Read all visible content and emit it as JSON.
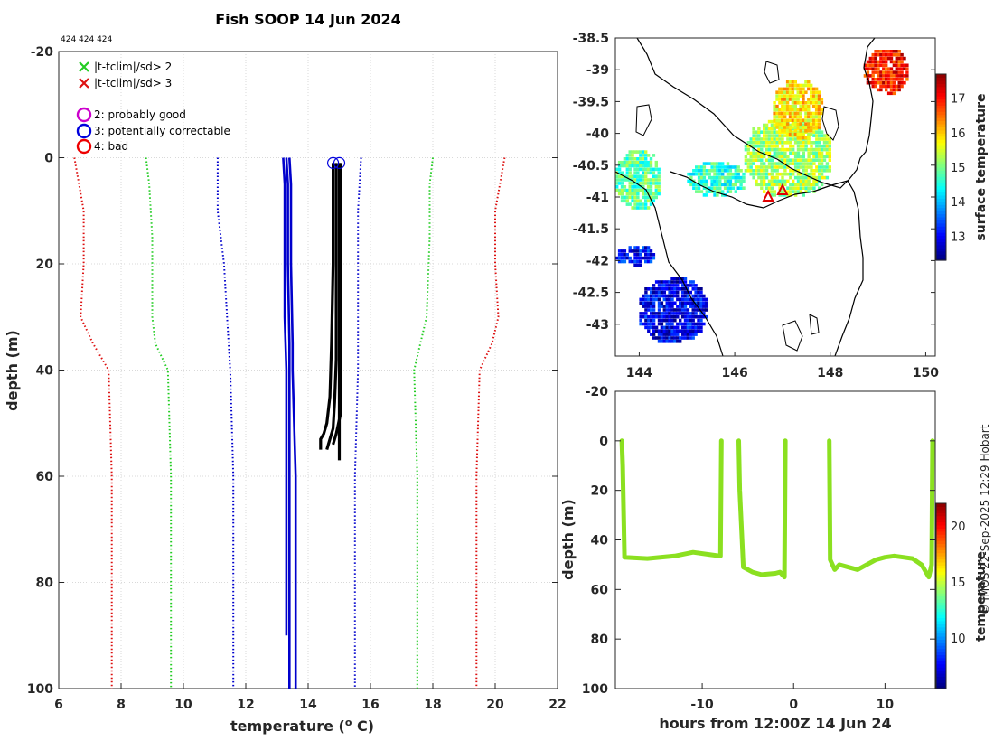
{
  "page": {
    "copyright": "© IMOS 22-Sep-2025 12:29 Hobart"
  },
  "colors": {
    "threshold_sd2": "#22cc22",
    "threshold_sd3": "#dd1111",
    "climatology": "#0000cc",
    "profile": "#000000",
    "qc_good": "#cc00cc",
    "qc_correctable": "#0000dd",
    "qc_bad": "#ee0000",
    "trace": "#8be020",
    "grid": "#d9d9d9"
  },
  "chart_data": [
    {
      "id": "profile",
      "type": "line",
      "title": "Fish SOOP 14 Jun 2024",
      "annotation": "424 424 424",
      "xlabel": "temperature (° C)",
      "xlabel_main": "temperature (",
      "xlabel_sup": "o",
      "xlabel_tail": " C)",
      "ylabel": "depth (m)",
      "xlim": [
        6,
        22
      ],
      "ylim": [
        -20,
        100
      ],
      "y_reversed": true,
      "xticks": [
        6,
        8,
        10,
        12,
        14,
        16,
        18,
        20,
        22
      ],
      "yticks": [
        -20,
        0,
        20,
        40,
        60,
        80,
        100
      ],
      "grid": true,
      "legend": [
        {
          "marker": "x",
          "color_key": "threshold_sd2",
          "label": "|t-tclim|/sd> 2"
        },
        {
          "marker": "x",
          "color_key": "threshold_sd3",
          "label": "|t-tclim|/sd> 3"
        },
        {
          "marker": "o",
          "color_key": "qc_good",
          "label": "2: probably good"
        },
        {
          "marker": "o",
          "color_key": "qc_correctable",
          "label": "3: potentially correctable"
        },
        {
          "marker": "o",
          "color_key": "qc_bad",
          "label": "4: bad"
        }
      ],
      "series": [
        {
          "name": "clim-3sd",
          "style": "dotted",
          "color_key": "threshold_sd3",
          "x": [
            6.5,
            6.8,
            6.8,
            6.7,
            7.1,
            7.6,
            7.7,
            7.7
          ],
          "y": [
            0,
            10,
            20,
            30,
            35,
            40,
            60,
            100
          ]
        },
        {
          "name": "clim+3sd",
          "style": "dotted",
          "color_key": "threshold_sd3",
          "x": [
            20.3,
            20.0,
            20.0,
            20.1,
            19.9,
            19.5,
            19.4,
            19.4
          ],
          "y": [
            0,
            10,
            20,
            30,
            35,
            40,
            60,
            100
          ]
        },
        {
          "name": "clim-2sd",
          "style": "dotted",
          "color_key": "threshold_sd2",
          "x": [
            8.8,
            8.9,
            9.0,
            9.0,
            9.1,
            9.5,
            9.6,
            9.6
          ],
          "y": [
            0,
            5,
            15,
            30,
            35,
            40,
            60,
            100
          ]
        },
        {
          "name": "clim+2sd",
          "style": "dotted",
          "color_key": "threshold_sd2",
          "x": [
            18.0,
            17.9,
            17.9,
            17.8,
            17.6,
            17.4,
            17.5,
            17.5
          ],
          "y": [
            0,
            5,
            15,
            30,
            35,
            40,
            60,
            100
          ]
        },
        {
          "name": "clim-1sd",
          "style": "dotted",
          "color_key": "climatology",
          "x": [
            11.1,
            11.1,
            11.3,
            11.4,
            11.5,
            11.6,
            11.6
          ],
          "y": [
            0,
            10,
            20,
            30,
            40,
            60,
            100
          ]
        },
        {
          "name": "clim+1sd",
          "style": "dotted",
          "color_key": "climatology",
          "x": [
            15.7,
            15.6,
            15.6,
            15.6,
            15.6,
            15.5,
            15.5
          ],
          "y": [
            0,
            10,
            20,
            30,
            40,
            60,
            100
          ]
        },
        {
          "name": "clim-mean-a",
          "style": "solid",
          "color_key": "climatology",
          "x": [
            13.2,
            13.25,
            13.25,
            13.25,
            13.3,
            13.3,
            13.3
          ],
          "y": [
            0,
            5,
            20,
            30,
            40,
            60,
            90
          ]
        },
        {
          "name": "clim-mean-b",
          "style": "solid",
          "color_key": "climatology",
          "x": [
            13.4,
            13.45,
            13.45,
            13.5,
            13.5,
            13.6,
            13.6
          ],
          "y": [
            0,
            5,
            20,
            35,
            40,
            60,
            100
          ]
        },
        {
          "name": "clim-mean-c",
          "style": "solid",
          "color_key": "climatology",
          "x": [
            13.3,
            13.35,
            13.35,
            13.4,
            13.4,
            13.4,
            13.4
          ],
          "y": [
            0,
            5,
            20,
            35,
            40,
            60,
            100
          ]
        },
        {
          "name": "xbt-profile-1",
          "style": "solid",
          "color_key": "profile",
          "x": [
            14.8,
            14.8,
            14.75,
            14.7,
            14.6,
            14.5,
            14.4,
            14.4
          ],
          "y": [
            1,
            20,
            35,
            45,
            50,
            52,
            53,
            55
          ]
        },
        {
          "name": "xbt-profile-2",
          "style": "solid",
          "color_key": "profile",
          "x": [
            14.9,
            14.9,
            14.9,
            14.85,
            14.8,
            14.7,
            14.6
          ],
          "y": [
            1,
            20,
            38,
            46,
            51,
            53,
            55
          ]
        },
        {
          "name": "xbt-profile-3",
          "style": "solid",
          "color_key": "profile",
          "x": [
            15.0,
            15.0,
            15.0,
            15.0,
            15.0
          ],
          "y": [
            1,
            20,
            40,
            50,
            57
          ]
        },
        {
          "name": "xbt-profile-4",
          "style": "solid",
          "color_key": "profile",
          "x": [
            15.05,
            15.05,
            15.05,
            14.9,
            14.8
          ],
          "y": [
            1,
            25,
            48,
            52,
            54
          ]
        }
      ],
      "qc_markers": [
        {
          "x": 14.8,
          "y": 1,
          "color_key": "qc_correctable"
        },
        {
          "x": 15.0,
          "y": 1,
          "color_key": "qc_correctable"
        }
      ]
    },
    {
      "id": "sst-map",
      "type": "heatmap",
      "xlim": [
        143.5,
        150.2
      ],
      "ylim": [
        -43.5,
        -38.5
      ],
      "xticks": [
        144,
        146,
        148,
        150
      ],
      "yticks": [
        -38.5,
        -39,
        -39.5,
        -40,
        -40.5,
        -41,
        -41.5,
        -42,
        -42.5,
        -43
      ],
      "ytick_labels": [
        "-38.5",
        "-39",
        "-39.5",
        "-40",
        "-40.5",
        "-41",
        "-41.5",
        "-42",
        "-42.5",
        "-43"
      ],
      "colorbar": {
        "label": "surface temperature",
        "range": [
          12.3,
          17.7
        ],
        "ticks": [
          13,
          14,
          15,
          16,
          17
        ]
      },
      "ship_positions": [
        {
          "lon": 146.7,
          "lat": -41.0
        },
        {
          "lon": 147.0,
          "lat": -40.9
        }
      ],
      "regions": [
        {
          "lon": [
            146.2,
            148.0
          ],
          "lat": [
            -41.0,
            -39.8
          ],
          "value": 15.2
        },
        {
          "lon": [
            146.8,
            147.8
          ],
          "lat": [
            -40.1,
            -39.2
          ],
          "value": 15.8
        },
        {
          "lon": [
            143.5,
            144.4
          ],
          "lat": [
            -41.2,
            -40.3
          ],
          "value": 14.8
        },
        {
          "lon": [
            144.0,
            145.4
          ],
          "lat": [
            -43.3,
            -42.3
          ],
          "value": 12.9
        },
        {
          "lon": [
            143.5,
            144.3
          ],
          "lat": [
            -42.1,
            -41.8
          ],
          "value": 13.0
        },
        {
          "lon": [
            148.7,
            149.6
          ],
          "lat": [
            -39.4,
            -38.7
          ],
          "value": 16.9
        },
        {
          "lon": [
            145.0,
            146.2
          ],
          "lat": [
            -41.0,
            -40.5
          ],
          "value": 14.6
        }
      ]
    },
    {
      "id": "depth-time",
      "type": "scatter",
      "xlabel": "hours from 12:00Z 14 Jun 24",
      "ylabel": "depth (m)",
      "xlim": [
        -19.5,
        15.5
      ],
      "ylim": [
        -20,
        100
      ],
      "y_reversed": true,
      "xticks": [
        -10,
        0,
        10
      ],
      "yticks": [
        -20,
        0,
        20,
        40,
        60,
        80,
        100
      ],
      "colorbar": {
        "label": "temperature",
        "range": [
          5.5,
          22
        ],
        "ticks": [
          10,
          15,
          20
        ]
      },
      "segments": [
        {
          "x": [
            -18.8,
            -18.7,
            -18.5,
            -16,
            -13,
            -11,
            -9,
            -8.0,
            -7.9
          ],
          "y": [
            0,
            10,
            47,
            47.5,
            46.5,
            45,
            46,
            46.5,
            0
          ]
        },
        {
          "x": [
            -6.0,
            -5.9,
            -5.5,
            -4.5,
            -3.5,
            -2,
            -1.5,
            -1.0,
            -0.9
          ],
          "y": [
            0,
            20,
            51,
            53,
            54,
            53.5,
            53,
            55,
            0
          ]
        },
        {
          "x": [
            3.9,
            4.0,
            4.5,
            5,
            6,
            7,
            8,
            9,
            10,
            11,
            12,
            13,
            14,
            14.8,
            15.1,
            15.2
          ],
          "y": [
            0,
            48,
            52,
            50,
            51,
            52,
            50,
            48,
            47,
            46.5,
            47,
            47.5,
            50,
            55,
            50,
            0
          ]
        }
      ]
    }
  ]
}
